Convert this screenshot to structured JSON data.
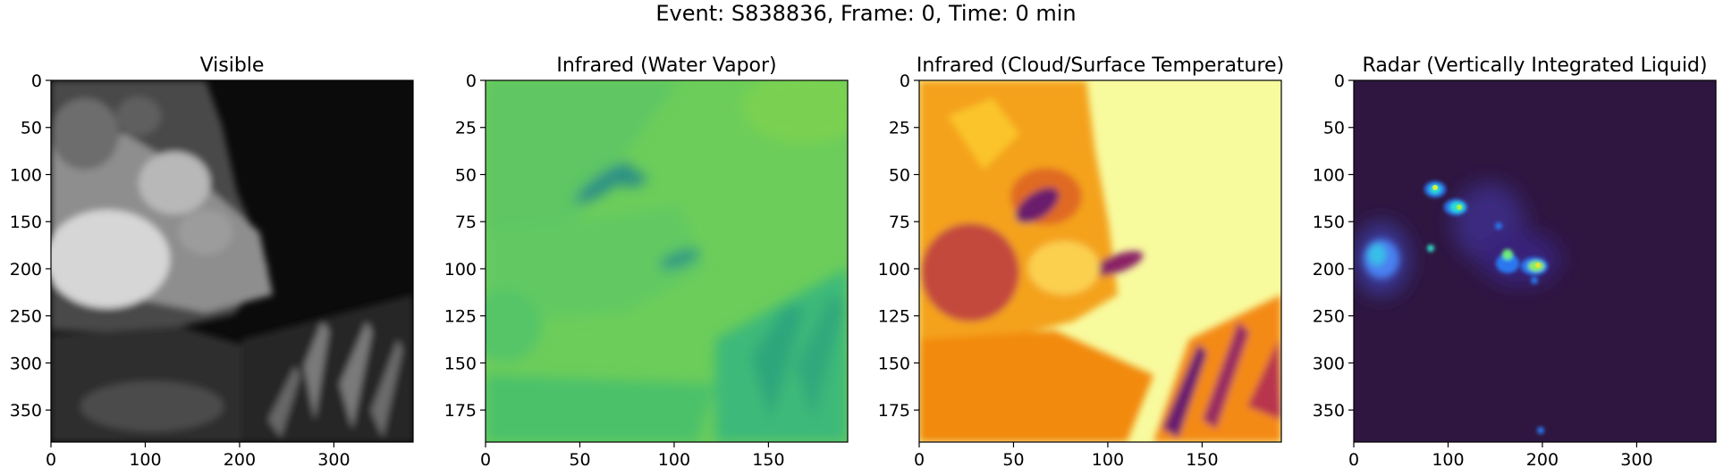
{
  "suptitle": "Event: S838836, Frame: 0, Time: 0 min",
  "chart_data": [
    {
      "type": "heatmap",
      "title": "Visible",
      "colormap": "gray",
      "x_ticks": [
        "0",
        "100",
        "200",
        "300"
      ],
      "y_ticks": [
        "0",
        "50",
        "100",
        "150",
        "200",
        "250",
        "300",
        "350"
      ],
      "xlim": [
        0,
        384
      ],
      "ylim": [
        384,
        0
      ],
      "x_tick_values": [
        0,
        100,
        200,
        300
      ],
      "y_tick_values": [
        0,
        50,
        100,
        150,
        200,
        250,
        300,
        350
      ]
    },
    {
      "type": "heatmap",
      "title": "Infrared (Water Vapor)",
      "colormap": "viridis",
      "x_ticks": [
        "0",
        "50",
        "100",
        "150"
      ],
      "y_ticks": [
        "0",
        "25",
        "50",
        "75",
        "100",
        "125",
        "150",
        "175"
      ],
      "xlim": [
        0,
        192
      ],
      "ylim": [
        192,
        0
      ],
      "x_tick_values": [
        0,
        50,
        100,
        150
      ],
      "y_tick_values": [
        0,
        25,
        50,
        75,
        100,
        125,
        150,
        175
      ]
    },
    {
      "type": "heatmap",
      "title": "Infrared (Cloud/Surface Temperature)",
      "colormap": "inferno",
      "x_ticks": [
        "0",
        "50",
        "100",
        "150"
      ],
      "y_ticks": [
        "0",
        "25",
        "50",
        "75",
        "100",
        "125",
        "150",
        "175"
      ],
      "xlim": [
        0,
        192
      ],
      "ylim": [
        192,
        0
      ],
      "x_tick_values": [
        0,
        50,
        100,
        150
      ],
      "y_tick_values": [
        0,
        25,
        50,
        75,
        100,
        125,
        150,
        175
      ]
    },
    {
      "type": "heatmap",
      "title": "Radar (Vertically Integrated Liquid)",
      "colormap": "turbo",
      "x_ticks": [
        "0",
        "100",
        "200",
        "300"
      ],
      "y_ticks": [
        "0",
        "50",
        "100",
        "150",
        "200",
        "250",
        "300",
        "350"
      ],
      "xlim": [
        0,
        384
      ],
      "ylim": [
        384,
        0
      ],
      "x_tick_values": [
        0,
        100,
        200,
        300
      ],
      "y_tick_values": [
        0,
        50,
        100,
        150,
        200,
        250,
        300,
        350
      ]
    }
  ]
}
